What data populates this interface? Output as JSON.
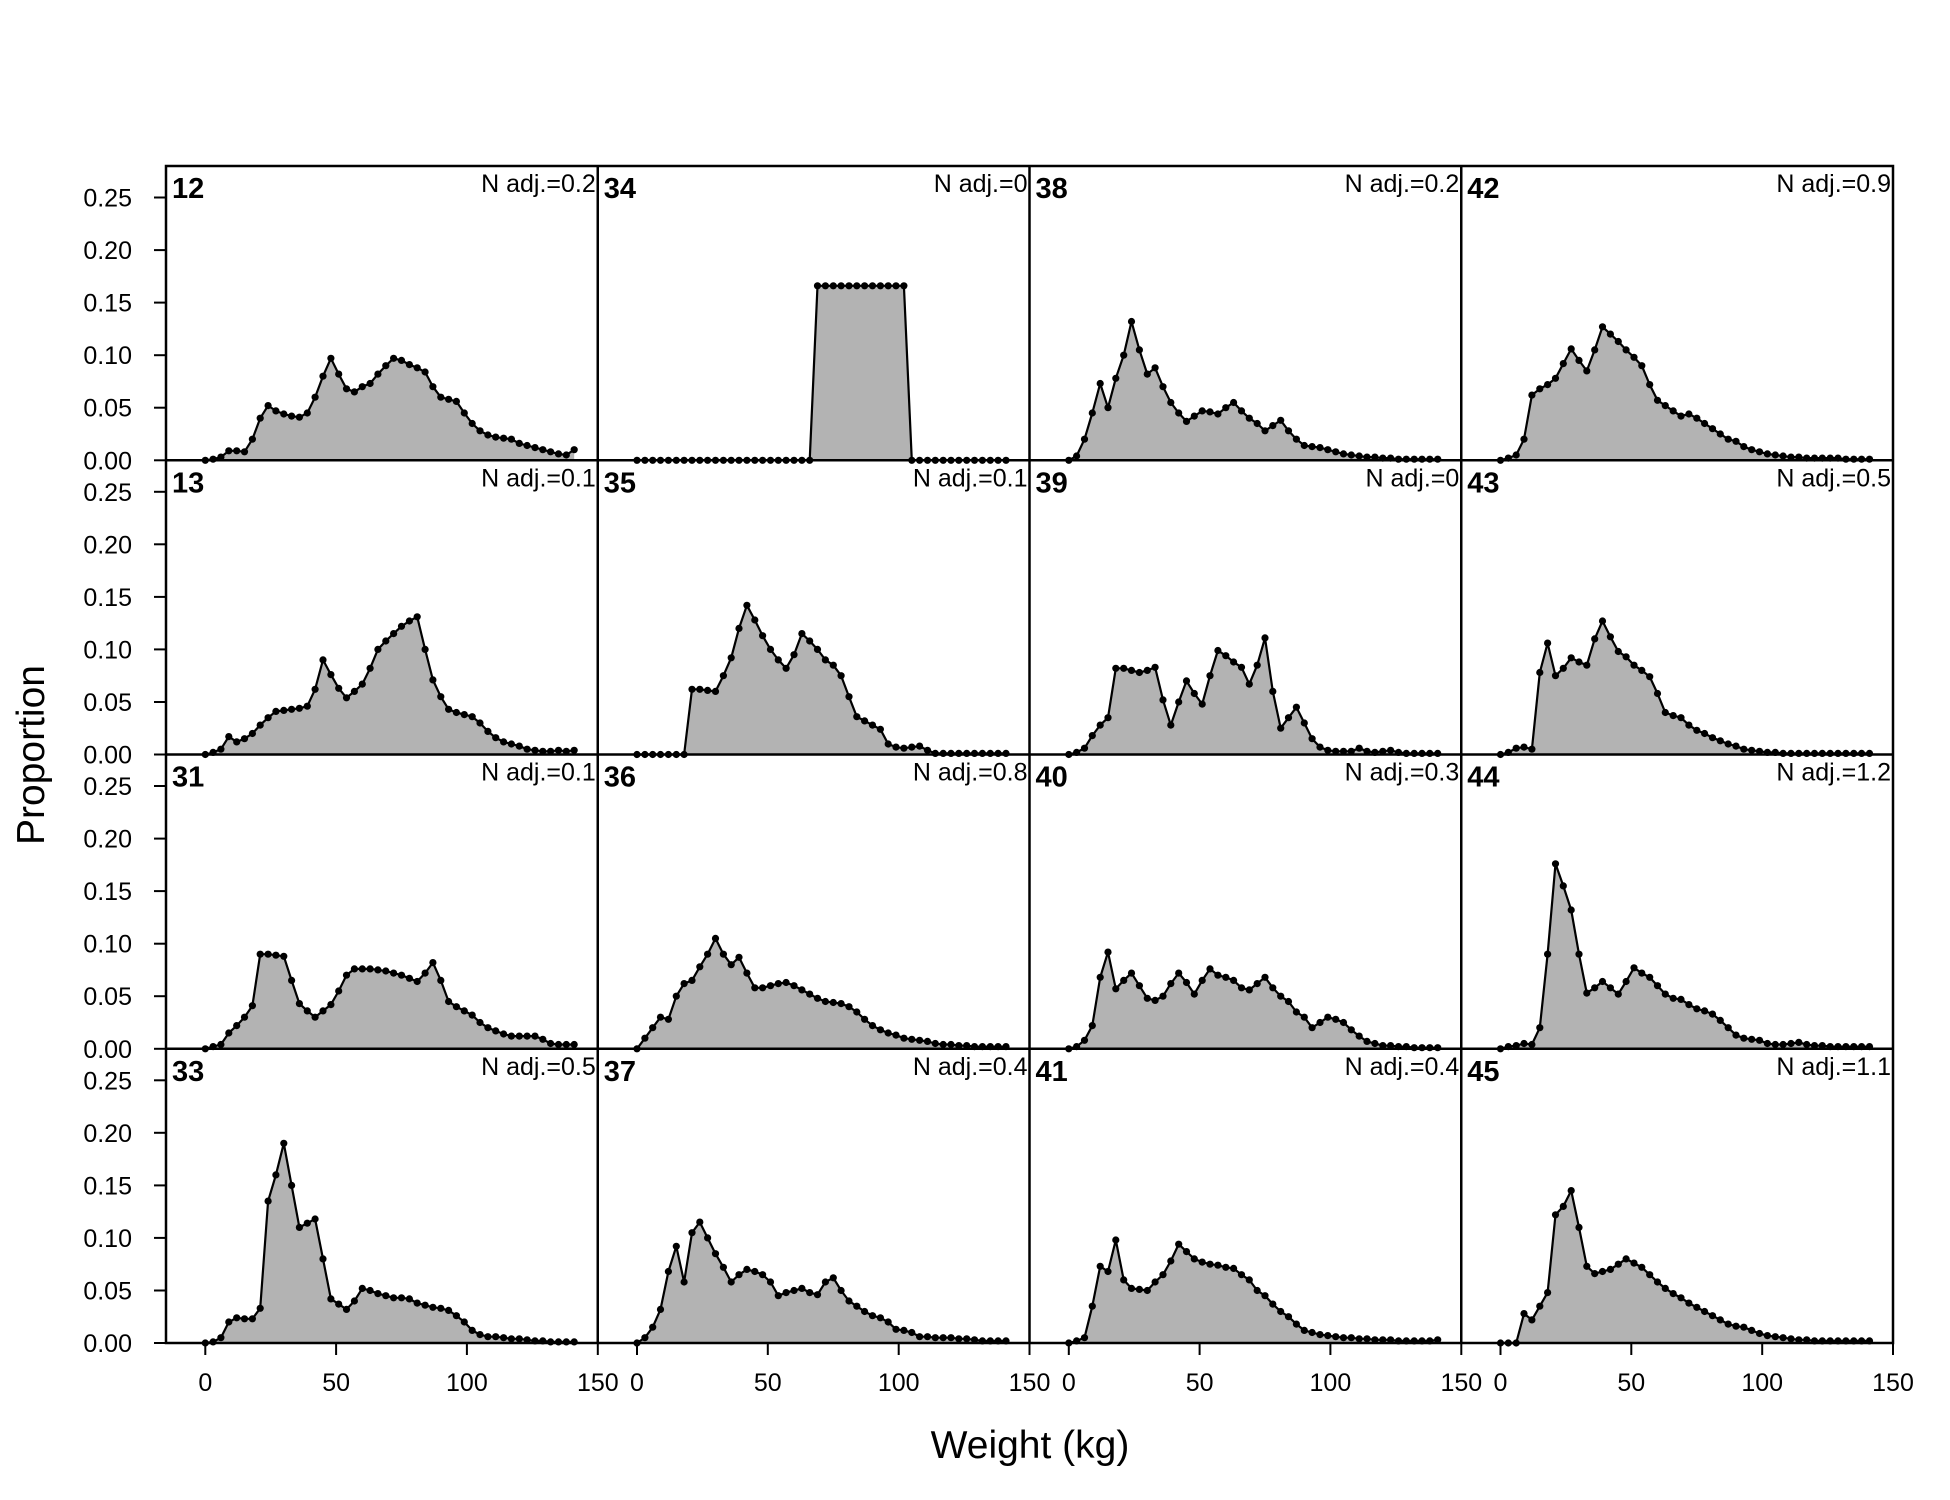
{
  "chart_data": {
    "type": "area",
    "xlabel": "Weight (kg)",
    "ylabel": "Proportion",
    "xlim": [
      -15,
      150
    ],
    "ylim": [
      0,
      0.28
    ],
    "xticks": [
      0,
      50,
      100,
      150
    ],
    "xtick_labels": [
      "0",
      "50",
      "100",
      "150"
    ],
    "yticks": [
      0,
      0.05,
      0.1,
      0.15,
      0.2,
      0.25
    ],
    "ytick_labels": [
      "0.00",
      "0.05",
      "0.10",
      "0.15",
      "0.20",
      "0.25"
    ],
    "grid": false,
    "layout": {
      "rows": 4,
      "cols": 4,
      "order": "column-major"
    },
    "x": [
      0,
      3,
      6,
      9,
      12,
      15,
      18,
      21,
      24,
      27,
      30,
      33,
      36,
      39,
      42,
      45,
      48,
      51,
      54,
      57,
      60,
      63,
      66,
      69,
      72,
      75,
      78,
      81,
      84,
      87,
      90,
      93,
      96,
      99,
      102,
      105,
      108,
      111,
      114,
      117,
      120,
      123,
      126,
      129,
      132,
      135,
      138,
      141
    ],
    "panels": [
      {
        "id": "12",
        "nadj": "N adj.=0.2",
        "values": [
          0,
          0.001,
          0.003,
          0.009,
          0.009,
          0.008,
          0.02,
          0.04,
          0.052,
          0.047,
          0.044,
          0.042,
          0.041,
          0.045,
          0.06,
          0.08,
          0.097,
          0.082,
          0.068,
          0.065,
          0.07,
          0.073,
          0.082,
          0.09,
          0.097,
          0.095,
          0.091,
          0.088,
          0.084,
          0.07,
          0.06,
          0.058,
          0.056,
          0.045,
          0.035,
          0.028,
          0.024,
          0.022,
          0.021,
          0.02,
          0.016,
          0.014,
          0.012,
          0.01,
          0.008,
          0.006,
          0.005,
          0.01
        ]
      },
      {
        "id": "13",
        "nadj": "N adj.=0.1",
        "values": [
          0,
          0.002,
          0.005,
          0.017,
          0.012,
          0.015,
          0.02,
          0.028,
          0.035,
          0.041,
          0.042,
          0.043,
          0.044,
          0.046,
          0.062,
          0.09,
          0.076,
          0.063,
          0.054,
          0.06,
          0.067,
          0.082,
          0.1,
          0.108,
          0.115,
          0.122,
          0.127,
          0.131,
          0.1,
          0.071,
          0.055,
          0.043,
          0.04,
          0.038,
          0.036,
          0.03,
          0.022,
          0.016,
          0.012,
          0.01,
          0.008,
          0.005,
          0.004,
          0.003,
          0.003,
          0.004,
          0.003,
          0.004
        ]
      },
      {
        "id": "31",
        "nadj": "N adj.=0.1",
        "values": [
          0,
          0.002,
          0.004,
          0.015,
          0.022,
          0.03,
          0.041,
          0.09,
          0.09,
          0.089,
          0.088,
          0.065,
          0.043,
          0.036,
          0.03,
          0.036,
          0.042,
          0.055,
          0.07,
          0.076,
          0.076,
          0.076,
          0.075,
          0.074,
          0.072,
          0.07,
          0.067,
          0.064,
          0.072,
          0.082,
          0.065,
          0.045,
          0.04,
          0.036,
          0.032,
          0.025,
          0.02,
          0.017,
          0.014,
          0.012,
          0.012,
          0.012,
          0.012,
          0.009,
          0.005,
          0.004,
          0.004,
          0.004
        ]
      },
      {
        "id": "33",
        "nadj": "N adj.=0.5",
        "values": [
          0,
          0.001,
          0.005,
          0.02,
          0.024,
          0.023,
          0.023,
          0.033,
          0.135,
          0.16,
          0.19,
          0.15,
          0.11,
          0.114,
          0.118,
          0.08,
          0.042,
          0.037,
          0.032,
          0.04,
          0.052,
          0.05,
          0.047,
          0.045,
          0.043,
          0.043,
          0.042,
          0.038,
          0.036,
          0.034,
          0.033,
          0.031,
          0.026,
          0.02,
          0.012,
          0.008,
          0.006,
          0.006,
          0.005,
          0.004,
          0.004,
          0.003,
          0.002,
          0.002,
          0.001,
          0.001,
          0.001,
          0.001
        ]
      },
      {
        "id": "34",
        "nadj": "N adj.=0",
        "values": [
          0,
          0,
          0,
          0,
          0,
          0,
          0,
          0,
          0,
          0,
          0,
          0,
          0,
          0,
          0,
          0,
          0,
          0,
          0,
          0,
          0,
          0,
          0,
          0.166,
          0.166,
          0.166,
          0.166,
          0.166,
          0.166,
          0.166,
          0.166,
          0.166,
          0.166,
          0.166,
          0.166,
          0,
          0,
          0,
          0,
          0,
          0,
          0,
          0,
          0,
          0,
          0,
          0,
          0
        ]
      },
      {
        "id": "35",
        "nadj": "N adj.=0.1",
        "values": [
          0,
          0,
          0,
          0,
          0,
          0,
          0,
          0.062,
          0.062,
          0.061,
          0.06,
          0.075,
          0.092,
          0.12,
          0.142,
          0.128,
          0.113,
          0.1,
          0.09,
          0.082,
          0.095,
          0.115,
          0.108,
          0.1,
          0.09,
          0.085,
          0.075,
          0.055,
          0.036,
          0.032,
          0.028,
          0.024,
          0.01,
          0.007,
          0.006,
          0.007,
          0.008,
          0.004,
          0.001,
          0.001,
          0.001,
          0.001,
          0.001,
          0.001,
          0.001,
          0.001,
          0.001,
          0.001
        ]
      },
      {
        "id": "36",
        "nadj": "N adj.=0.8",
        "values": [
          0,
          0.01,
          0.02,
          0.03,
          0.028,
          0.05,
          0.062,
          0.065,
          0.078,
          0.09,
          0.105,
          0.09,
          0.08,
          0.087,
          0.072,
          0.058,
          0.058,
          0.06,
          0.062,
          0.063,
          0.06,
          0.056,
          0.052,
          0.048,
          0.045,
          0.044,
          0.043,
          0.04,
          0.035,
          0.028,
          0.022,
          0.018,
          0.015,
          0.013,
          0.01,
          0.009,
          0.008,
          0.007,
          0.005,
          0.004,
          0.004,
          0.003,
          0.003,
          0.002,
          0.002,
          0.002,
          0.002,
          0.002
        ]
      },
      {
        "id": "37",
        "nadj": "N adj.=0.4",
        "values": [
          0,
          0.005,
          0.015,
          0.032,
          0.068,
          0.092,
          0.058,
          0.105,
          0.115,
          0.1,
          0.085,
          0.072,
          0.058,
          0.065,
          0.07,
          0.068,
          0.065,
          0.058,
          0.045,
          0.048,
          0.05,
          0.052,
          0.048,
          0.046,
          0.058,
          0.062,
          0.05,
          0.04,
          0.035,
          0.03,
          0.026,
          0.024,
          0.02,
          0.013,
          0.012,
          0.01,
          0.006,
          0.006,
          0.005,
          0.005,
          0.005,
          0.004,
          0.004,
          0.003,
          0.002,
          0.002,
          0.002,
          0.002
        ]
      },
      {
        "id": "38",
        "nadj": "N adj.=0.2",
        "values": [
          0,
          0.004,
          0.02,
          0.045,
          0.073,
          0.05,
          0.078,
          0.1,
          0.132,
          0.105,
          0.082,
          0.088,
          0.07,
          0.055,
          0.045,
          0.037,
          0.042,
          0.047,
          0.046,
          0.044,
          0.05,
          0.055,
          0.047,
          0.04,
          0.035,
          0.028,
          0.033,
          0.038,
          0.028,
          0.02,
          0.014,
          0.013,
          0.012,
          0.01,
          0.008,
          0.006,
          0.005,
          0.004,
          0.003,
          0.003,
          0.002,
          0.002,
          0.001,
          0.001,
          0.001,
          0.001,
          0.001,
          0.001
        ]
      },
      {
        "id": "39",
        "nadj": "N adj.=0",
        "values": [
          0,
          0.002,
          0.006,
          0.018,
          0.028,
          0.035,
          0.082,
          0.082,
          0.08,
          0.078,
          0.08,
          0.083,
          0.052,
          0.028,
          0.05,
          0.07,
          0.058,
          0.048,
          0.075,
          0.099,
          0.094,
          0.088,
          0.083,
          0.067,
          0.085,
          0.111,
          0.06,
          0.025,
          0.035,
          0.045,
          0.03,
          0.015,
          0.007,
          0.004,
          0.003,
          0.003,
          0.003,
          0.006,
          0.003,
          0.002,
          0.003,
          0.004,
          0.002,
          0.001,
          0.001,
          0.001,
          0.001,
          0.001
        ]
      },
      {
        "id": "40",
        "nadj": "N adj.=0.3",
        "values": [
          0,
          0.002,
          0.008,
          0.022,
          0.068,
          0.092,
          0.057,
          0.065,
          0.072,
          0.06,
          0.048,
          0.046,
          0.05,
          0.062,
          0.072,
          0.063,
          0.052,
          0.065,
          0.076,
          0.07,
          0.068,
          0.065,
          0.058,
          0.056,
          0.062,
          0.068,
          0.058,
          0.05,
          0.045,
          0.035,
          0.03,
          0.02,
          0.025,
          0.03,
          0.028,
          0.025,
          0.018,
          0.012,
          0.007,
          0.005,
          0.003,
          0.003,
          0.002,
          0.002,
          0.001,
          0.001,
          0.001,
          0.001
        ]
      },
      {
        "id": "41",
        "nadj": "N adj.=0.4",
        "values": [
          0,
          0.002,
          0.005,
          0.035,
          0.073,
          0.068,
          0.098,
          0.06,
          0.052,
          0.051,
          0.05,
          0.058,
          0.065,
          0.078,
          0.094,
          0.087,
          0.08,
          0.077,
          0.075,
          0.074,
          0.072,
          0.071,
          0.065,
          0.06,
          0.05,
          0.045,
          0.037,
          0.03,
          0.025,
          0.018,
          0.012,
          0.01,
          0.008,
          0.007,
          0.006,
          0.005,
          0.005,
          0.004,
          0.004,
          0.003,
          0.003,
          0.003,
          0.002,
          0.002,
          0.002,
          0.002,
          0.002,
          0.003
        ]
      },
      {
        "id": "42",
        "nadj": "N adj.=0.9",
        "values": [
          0,
          0.002,
          0.005,
          0.02,
          0.062,
          0.068,
          0.072,
          0.078,
          0.092,
          0.106,
          0.095,
          0.085,
          0.105,
          0.127,
          0.12,
          0.113,
          0.105,
          0.098,
          0.09,
          0.072,
          0.057,
          0.052,
          0.047,
          0.042,
          0.044,
          0.04,
          0.035,
          0.03,
          0.025,
          0.02,
          0.018,
          0.013,
          0.01,
          0.008,
          0.006,
          0.005,
          0.004,
          0.003,
          0.003,
          0.002,
          0.002,
          0.002,
          0.002,
          0.002,
          0.001,
          0.001,
          0.001,
          0.001
        ]
      },
      {
        "id": "43",
        "nadj": "N adj.=0.5",
        "values": [
          0,
          0.002,
          0.006,
          0.007,
          0.005,
          0.078,
          0.106,
          0.075,
          0.082,
          0.092,
          0.088,
          0.085,
          0.11,
          0.127,
          0.112,
          0.098,
          0.093,
          0.085,
          0.08,
          0.074,
          0.058,
          0.04,
          0.037,
          0.035,
          0.028,
          0.023,
          0.02,
          0.016,
          0.013,
          0.01,
          0.008,
          0.005,
          0.004,
          0.003,
          0.002,
          0.002,
          0.001,
          0.001,
          0.001,
          0.001,
          0.001,
          0.001,
          0.001,
          0.001,
          0.001,
          0.001,
          0.001,
          0.001
        ]
      },
      {
        "id": "44",
        "nadj": "N adj.=1.2",
        "values": [
          0,
          0.002,
          0.003,
          0.005,
          0.004,
          0.02,
          0.09,
          0.176,
          0.155,
          0.132,
          0.09,
          0.053,
          0.058,
          0.064,
          0.058,
          0.052,
          0.064,
          0.077,
          0.072,
          0.068,
          0.06,
          0.052,
          0.048,
          0.047,
          0.042,
          0.038,
          0.036,
          0.033,
          0.027,
          0.02,
          0.013,
          0.01,
          0.009,
          0.008,
          0.005,
          0.004,
          0.004,
          0.005,
          0.006,
          0.004,
          0.003,
          0.003,
          0.002,
          0.002,
          0.002,
          0.002,
          0.002,
          0.002
        ]
      },
      {
        "id": "45",
        "nadj": "N adj.=1.1",
        "values": [
          0,
          0,
          0,
          0.028,
          0.022,
          0.035,
          0.048,
          0.122,
          0.13,
          0.145,
          0.11,
          0.073,
          0.066,
          0.068,
          0.07,
          0.075,
          0.08,
          0.076,
          0.072,
          0.065,
          0.058,
          0.052,
          0.047,
          0.043,
          0.038,
          0.034,
          0.03,
          0.026,
          0.022,
          0.018,
          0.016,
          0.015,
          0.012,
          0.009,
          0.007,
          0.006,
          0.005,
          0.004,
          0.003,
          0.003,
          0.002,
          0.002,
          0.002,
          0.002,
          0.002,
          0.002,
          0.002,
          0.002
        ]
      }
    ]
  }
}
